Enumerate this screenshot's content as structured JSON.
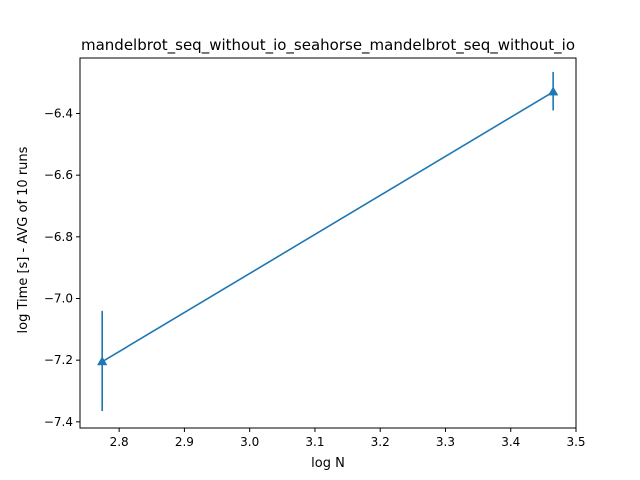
{
  "chart_data": {
    "type": "line",
    "title": "mandelbrot_seq_without_io_seahorse_mandelbrot_seq_without_io",
    "xlabel": "log N",
    "ylabel": "log Time  [s] - AVG of 10 runs",
    "xlim": [
      2.74,
      3.5
    ],
    "ylim": [
      -7.42,
      -6.22
    ],
    "xticks": [
      2.8,
      2.9,
      3.0,
      3.1,
      3.2,
      3.3,
      3.4,
      3.5
    ],
    "xtick_labels": [
      "2.8",
      "2.9",
      "3.0",
      "3.1",
      "3.2",
      "3.3",
      "3.4",
      "3.5"
    ],
    "yticks": [
      -7.4,
      -7.2,
      -7.0,
      -6.8,
      -6.6,
      -6.4
    ],
    "ytick_labels": [
      "−7.4",
      "−7.2",
      "−7.0",
      "−6.8",
      "−6.6",
      "−6.4"
    ],
    "grid": false,
    "series": [
      {
        "marker": "triangle",
        "color": "#1f77b4",
        "x": [
          2.774,
          3.465
        ],
        "y": [
          -7.205,
          -6.33
        ],
        "error_low": [
          -7.365,
          -6.39
        ],
        "error_high": [
          -7.04,
          -6.265
        ]
      }
    ]
  }
}
